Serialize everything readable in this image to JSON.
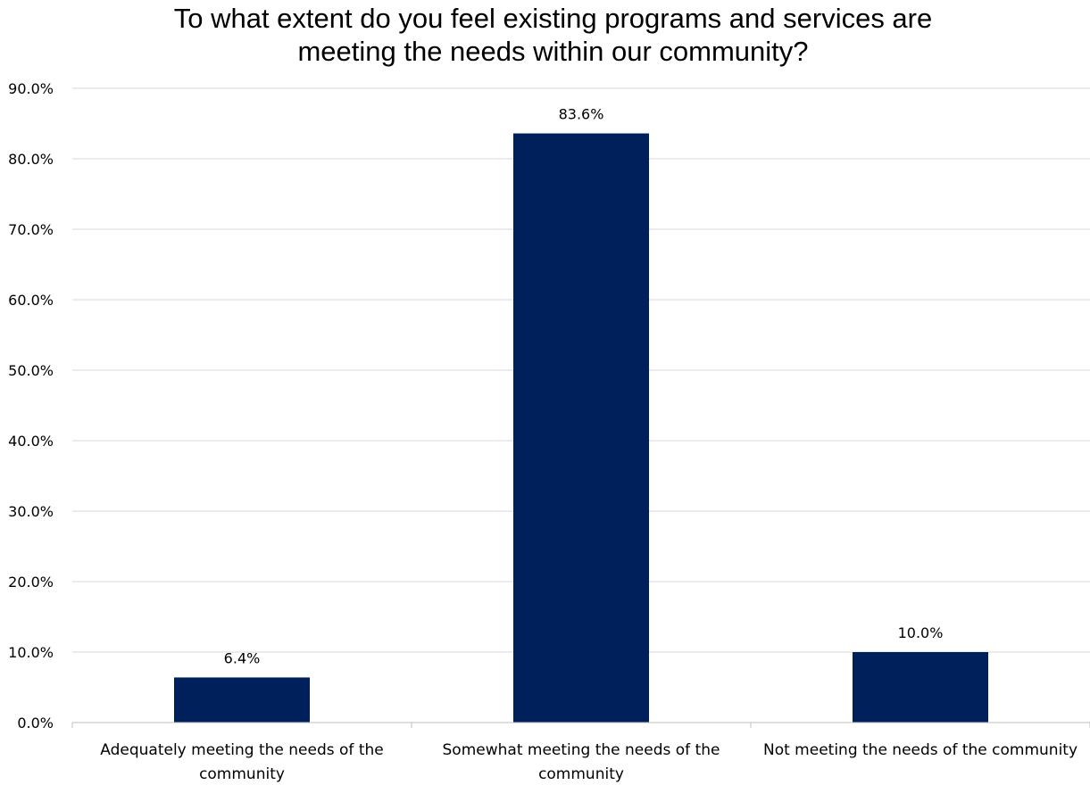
{
  "chart_data": {
    "type": "bar",
    "title": "To what extent do you feel existing programs and services are meeting the needs within our community?",
    "title_lines": [
      "To what extent do you feel existing programs and services are",
      "meeting the needs within our community?"
    ],
    "categories": [
      "Adequately meeting the needs of the community",
      "Somewhat meeting the needs of the community",
      "Not meeting the needs of the community"
    ],
    "category_label_lines": [
      [
        "Adequately meeting the needs of the",
        "community"
      ],
      [
        "Somewhat meeting the needs of the",
        "community"
      ],
      [
        "Not meeting the needs of the community"
      ]
    ],
    "values": [
      6.4,
      83.6,
      10.0
    ],
    "data_labels": [
      "6.4%",
      "83.6%",
      "10.0%"
    ],
    "ylim": [
      0,
      90
    ],
    "yticks": [
      0,
      10,
      20,
      30,
      40,
      50,
      60,
      70,
      80,
      90
    ],
    "ytick_labels": [
      "0.0%",
      "10.0%",
      "20.0%",
      "30.0%",
      "40.0%",
      "50.0%",
      "60.0%",
      "70.0%",
      "80.0%",
      "90.0%"
    ],
    "xlabel": "",
    "ylabel": "",
    "grid": true,
    "legend": "none",
    "bar_color": "#00205b",
    "grid_color": "#d9d9d9",
    "axis_color": "#bfbfbf"
  }
}
